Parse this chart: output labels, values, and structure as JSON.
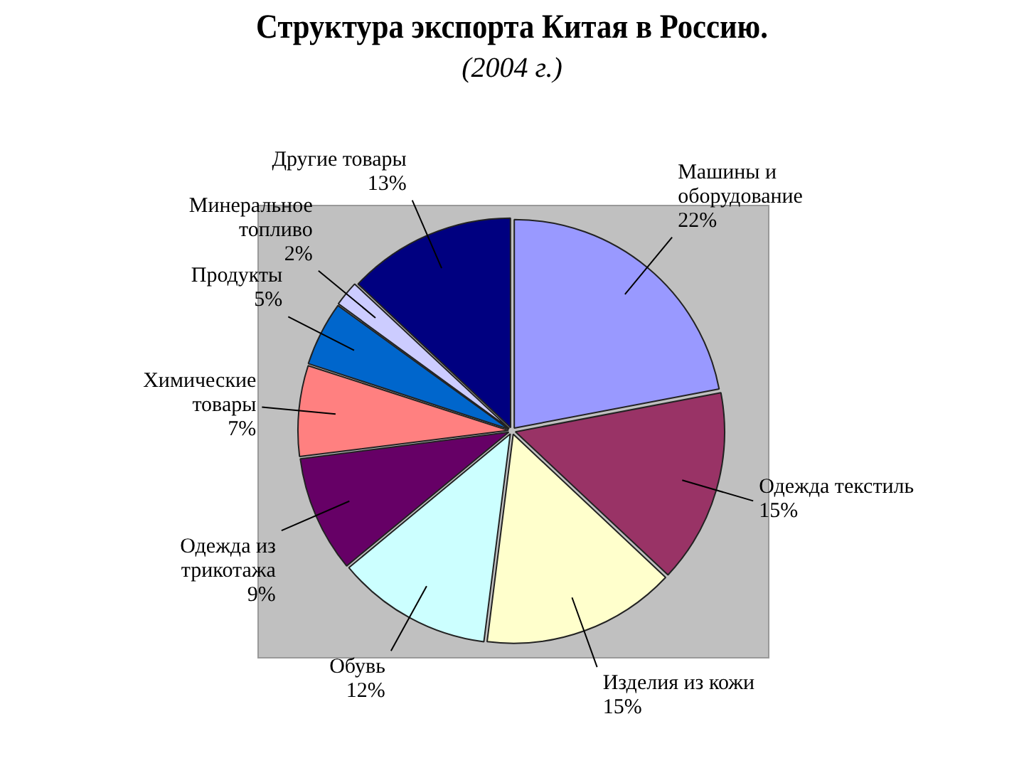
{
  "chart_data": {
    "type": "pie",
    "title": "Структура экспорта Китая в Россию.",
    "subtitle": "(2004 г.)",
    "categories": [
      "Машины и оборудование",
      "Одежда текстиль",
      "Изделия из кожи",
      "Обувь",
      "Одежда из трикотажа",
      "Химические товары",
      "Продукты",
      "Минеральное топливо",
      "Другие товары"
    ],
    "values": [
      22,
      15,
      15,
      12,
      9,
      7,
      5,
      2,
      13
    ],
    "value_labels": [
      "22%",
      "15%",
      "15%",
      "12%",
      "9%",
      "7%",
      "5%",
      "2%",
      "13%"
    ],
    "colors": [
      "#9999ff",
      "#993366",
      "#ffffcc",
      "#ccffff",
      "#660066",
      "#ff8080",
      "#0066cc",
      "#ccccff",
      "#000080"
    ],
    "legend": false
  }
}
